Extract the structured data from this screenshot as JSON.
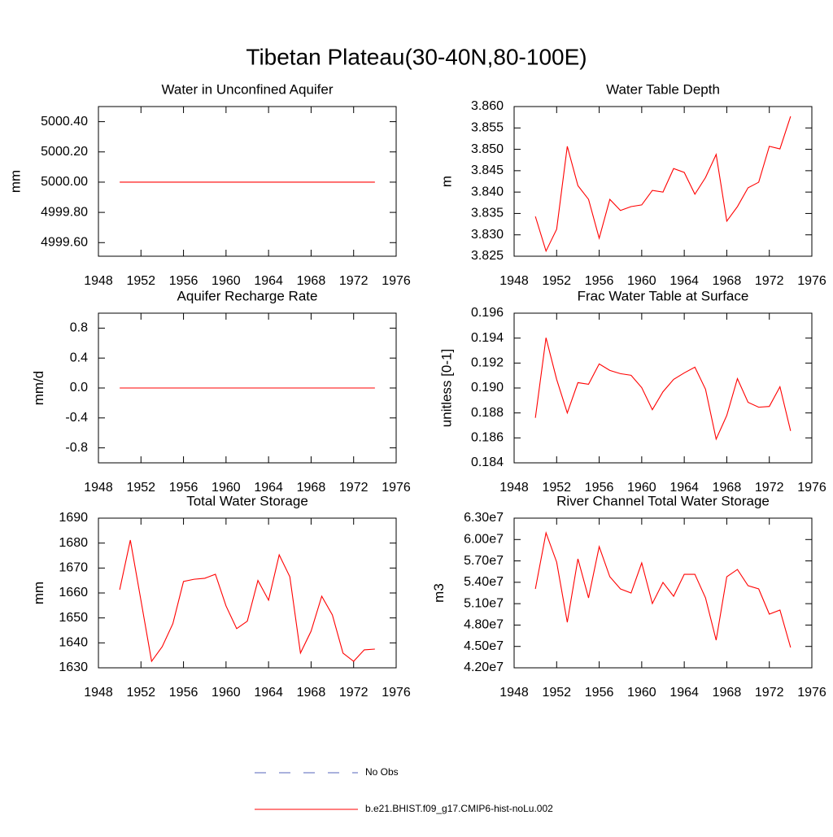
{
  "title": "Tibetan Plateau(30-40N,80-100E)",
  "legend": [
    {
      "name": "No Obs",
      "color": "#5566bb",
      "dash": true
    },
    {
      "name": "b.e21.BHIST.f09_g17.CMIP6-hist-noLu.002",
      "color": "#ff0000",
      "dash": false
    }
  ],
  "chart_data": [
    {
      "type": "line",
      "title": "Water in Unconfined Aquifer",
      "y_label": "mm",
      "x": [
        1950,
        1951,
        1952,
        1953,
        1954,
        1955,
        1956,
        1957,
        1958,
        1959,
        1960,
        1961,
        1962,
        1963,
        1964,
        1965,
        1966,
        1967,
        1968,
        1969,
        1970,
        1971,
        1972,
        1973,
        1974
      ],
      "series": [
        {
          "color": "#ff0000",
          "values": [
            5000,
            5000,
            5000,
            5000,
            5000,
            5000,
            5000,
            5000,
            5000,
            5000,
            5000,
            5000,
            5000,
            5000,
            5000,
            5000,
            5000,
            5000,
            5000,
            5000,
            5000,
            5000,
            5000,
            5000,
            5000
          ]
        }
      ],
      "xlim": [
        1948,
        1976
      ],
      "xticks": [
        1948,
        1952,
        1956,
        1960,
        1964,
        1968,
        1972,
        1976
      ],
      "ylim": [
        4999.51,
        5000.5
      ],
      "yticks": [
        {
          "value": 4999.6,
          "label": "4999.60"
        },
        {
          "value": 4999.8,
          "label": "4999.80"
        },
        {
          "value": 5000,
          "label": "5000.00"
        },
        {
          "value": 5000.2,
          "label": "5000.20"
        },
        {
          "value": 5000.4,
          "label": "5000.40"
        }
      ]
    },
    {
      "type": "line",
      "title": "Water Table Depth",
      "y_label": "m",
      "x": [
        1950,
        1951,
        1952,
        1953,
        1954,
        1955,
        1956,
        1957,
        1958,
        1959,
        1960,
        1961,
        1962,
        1963,
        1964,
        1965,
        1966,
        1967,
        1968,
        1969,
        1970,
        1971,
        1972,
        1973,
        1974
      ],
      "series": [
        {
          "color": "#ff0000",
          "values": [
            3.8343,
            3.8262,
            3.8313,
            3.8507,
            3.8415,
            3.8383,
            3.8292,
            3.8383,
            3.8357,
            3.8366,
            3.837,
            3.8404,
            3.84,
            3.8455,
            3.8446,
            3.8395,
            3.8434,
            3.8488,
            3.8332,
            3.8366,
            3.841,
            3.8423,
            3.8507,
            3.8501,
            3.8577
          ]
        }
      ],
      "xlim": [
        1948,
        1976
      ],
      "xticks": [
        1948,
        1952,
        1956,
        1960,
        1964,
        1968,
        1972,
        1976
      ],
      "ylim": [
        3.825,
        3.86
      ],
      "yticks": [
        3.825,
        {
          "value": 3.83,
          "label": "3.830"
        },
        3.835,
        {
          "value": 3.84,
          "label": "3.840"
        },
        3.845,
        {
          "value": 3.85,
          "label": "3.850"
        },
        3.855,
        {
          "value": 3.86,
          "label": "3.860"
        }
      ]
    },
    {
      "type": "line",
      "title": "Aquifer Recharge Rate",
      "y_label": "mm/d",
      "x": [
        1950,
        1951,
        1952,
        1953,
        1954,
        1955,
        1956,
        1957,
        1958,
        1959,
        1960,
        1961,
        1962,
        1963,
        1964,
        1965,
        1966,
        1967,
        1968,
        1969,
        1970,
        1971,
        1972,
        1973,
        1974
      ],
      "series": [
        {
          "color": "#ff0000",
          "values": [
            0,
            0,
            0,
            0,
            0,
            0,
            0,
            0,
            0,
            0,
            0,
            0,
            0,
            0,
            0,
            0,
            0,
            0,
            0,
            0,
            0,
            0,
            0,
            0,
            0
          ]
        }
      ],
      "xlim": [
        1948,
        1976
      ],
      "xticks": [
        1948,
        1952,
        1956,
        1960,
        1964,
        1968,
        1972,
        1976
      ],
      "ylim": [
        -1,
        1
      ],
      "yticks": [
        -0.8,
        -0.4,
        {
          "value": 0,
          "label": "0.0"
        },
        0.4,
        0.8
      ]
    },
    {
      "type": "line",
      "title": "Frac Water Table at Surface",
      "y_label": "unitless [0-1]",
      "x": [
        1950,
        1951,
        1952,
        1953,
        1954,
        1955,
        1956,
        1957,
        1958,
        1959,
        1960,
        1961,
        1962,
        1963,
        1964,
        1965,
        1966,
        1967,
        1968,
        1969,
        1970,
        1971,
        1972,
        1973,
        1974
      ],
      "series": [
        {
          "color": "#ff0000",
          "values": [
            0.18761,
            0.19403,
            0.19069,
            0.188,
            0.19043,
            0.1903,
            0.19193,
            0.19141,
            0.19115,
            0.19102,
            0.19003,
            0.18826,
            0.1897,
            0.19069,
            0.19121,
            0.19167,
            0.1899,
            0.1859,
            0.1878,
            0.19075,
            0.18885,
            0.18846,
            0.18852,
            0.1901,
            0.18656
          ]
        }
      ],
      "xlim": [
        1948,
        1976
      ],
      "xticks": [
        1948,
        1952,
        1956,
        1960,
        1964,
        1968,
        1972,
        1976
      ],
      "ylim": [
        0.184,
        0.196
      ],
      "yticks": [
        0.184,
        0.186,
        0.188,
        {
          "value": 0.19,
          "label": "0.190"
        },
        0.192,
        0.194,
        0.196
      ]
    },
    {
      "type": "line",
      "title": "Total Water Storage",
      "y_label": "mm",
      "x": [
        1950,
        1951,
        1952,
        1953,
        1954,
        1955,
        1956,
        1957,
        1958,
        1959,
        1960,
        1961,
        1962,
        1963,
        1964,
        1965,
        1966,
        1967,
        1968,
        1969,
        1970,
        1971,
        1972,
        1973,
        1974
      ],
      "series": [
        {
          "color": "#ff0000",
          "values": [
            1661.3,
            1681.2,
            1657,
            1632.6,
            1638.5,
            1647.7,
            1664.6,
            1665.5,
            1665.9,
            1667.5,
            1654.8,
            1645.7,
            1648.7,
            1665,
            1657.1,
            1675.3,
            1666.5,
            1635.9,
            1644.7,
            1658.7,
            1651.2,
            1635.9,
            1632.6,
            1637.2,
            1637.5
          ]
        }
      ],
      "xlim": [
        1948,
        1976
      ],
      "xticks": [
        1948,
        1952,
        1956,
        1960,
        1964,
        1968,
        1972,
        1976
      ],
      "ylim": [
        1630,
        1690
      ],
      "yticks": [
        1630,
        1640,
        1650,
        1660,
        1670,
        1680,
        1690
      ]
    },
    {
      "type": "line",
      "title": "River Channel Total Water Storage",
      "y_label": "m3",
      "x": [
        1950,
        1951,
        1952,
        1953,
        1954,
        1955,
        1956,
        1957,
        1958,
        1959,
        1960,
        1961,
        1962,
        1963,
        1964,
        1965,
        1966,
        1967,
        1968,
        1969,
        1970,
        1971,
        1972,
        1973,
        1974
      ],
      "series": [
        {
          "color": "#ff0000",
          "values": [
            53070000,
            60940000,
            56840000,
            48390000,
            57290000,
            51810000,
            59000000,
            54780000,
            53070000,
            52500000,
            56720000,
            51020000,
            53980000,
            52040000,
            55120000,
            55120000,
            51810000,
            45880000,
            54780000,
            55800000,
            53520000,
            53070000,
            49530000,
            50100000,
            44850000
          ]
        }
      ],
      "xlim": [
        1948,
        1976
      ],
      "xticks": [
        1948,
        1952,
        1956,
        1960,
        1964,
        1968,
        1972,
        1976
      ],
      "ylim": [
        42000000,
        63000000
      ],
      "yticks": [
        {
          "value": 42000000,
          "label": "4.20e7"
        },
        {
          "value": 45000000,
          "label": "4.50e7"
        },
        {
          "value": 48000000,
          "label": "4.80e7"
        },
        {
          "value": 51000000,
          "label": "5.10e7"
        },
        {
          "value": 54000000,
          "label": "5.40e7"
        },
        {
          "value": 57000000,
          "label": "5.70e7"
        },
        {
          "value": 60000000,
          "label": "6.00e7"
        },
        {
          "value": 63000000,
          "label": "6.30e7"
        }
      ]
    }
  ]
}
